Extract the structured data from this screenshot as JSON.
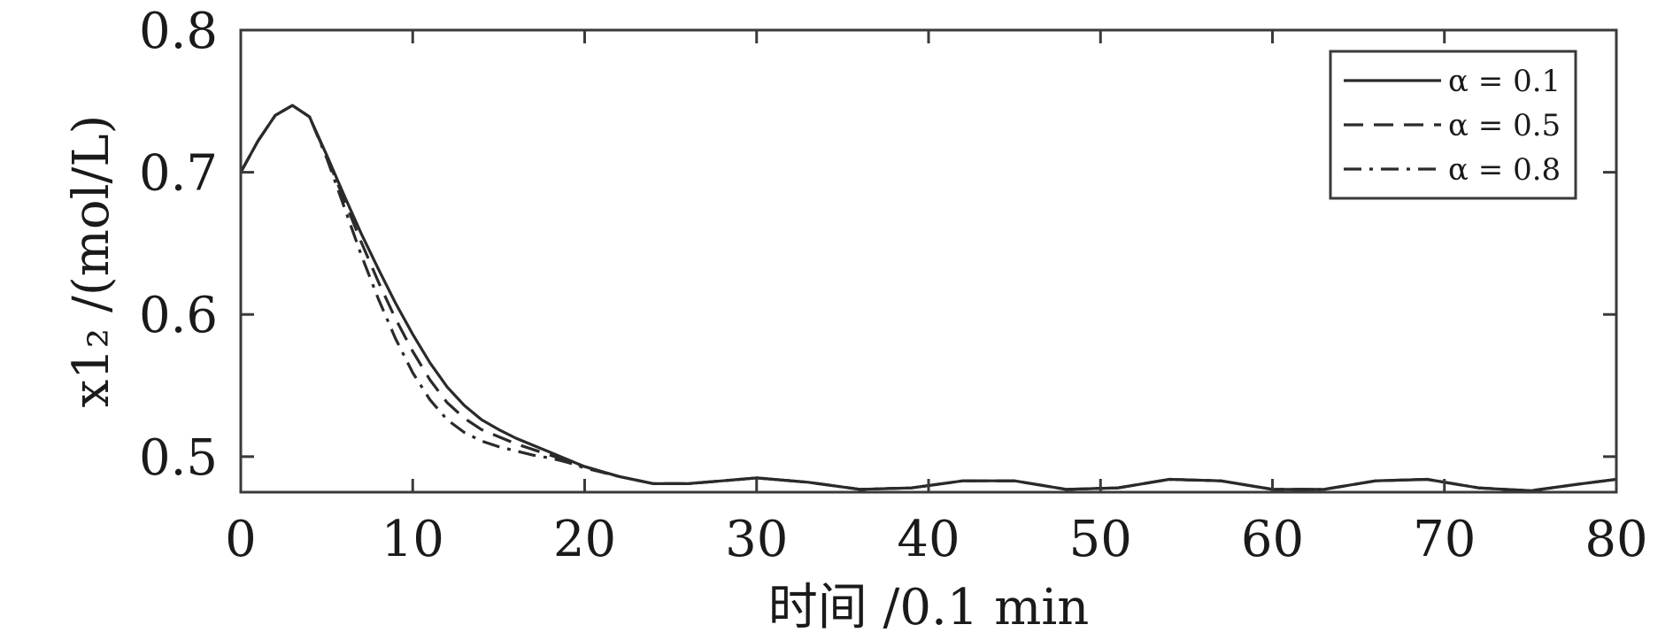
{
  "chart_data": {
    "type": "line",
    "xlabel": "时间 /0.1 min",
    "ylabel": "x1₂ /(mol/L)",
    "xlim": [
      0,
      80
    ],
    "ylim": [
      0.475,
      0.8
    ],
    "xticks": [
      0,
      10,
      20,
      30,
      40,
      50,
      60,
      70,
      80
    ],
    "xtick_labels": [
      "0",
      "10",
      "20",
      "30",
      "40",
      "50",
      "60",
      "70",
      "80"
    ],
    "yticks": [
      0.5,
      0.6,
      0.7,
      0.8
    ],
    "ytick_labels": [
      "0.5",
      "0.6",
      "0.7",
      "0.8"
    ],
    "grid": false,
    "legend_position": "top-right",
    "line_color": "#2a2a2a",
    "series": [
      {
        "name": "α = 0.1",
        "style": "solid",
        "x": [
          0,
          1,
          2,
          3,
          4,
          5,
          6,
          7,
          8,
          9,
          10,
          11,
          12,
          13,
          14,
          15,
          16,
          17,
          18,
          19,
          20,
          22,
          24,
          26,
          28,
          30,
          33,
          36,
          39,
          42,
          45,
          48,
          51,
          54,
          57,
          60,
          63,
          66,
          69,
          72,
          75,
          78,
          80
        ],
        "y": [
          0.7,
          0.722,
          0.74,
          0.747,
          0.739,
          0.712,
          0.684,
          0.657,
          0.632,
          0.608,
          0.586,
          0.566,
          0.549,
          0.536,
          0.526,
          0.519,
          0.513,
          0.508,
          0.503,
          0.498,
          0.493,
          0.486,
          0.481,
          0.481,
          0.483,
          0.485,
          0.482,
          0.477,
          0.478,
          0.483,
          0.483,
          0.477,
          0.478,
          0.484,
          0.483,
          0.477,
          0.477,
          0.483,
          0.484,
          0.478,
          0.476,
          0.481,
          0.484
        ]
      },
      {
        "name": "α = 0.5",
        "style": "dashed",
        "x": [
          0,
          1,
          2,
          3,
          4,
          5,
          6,
          7,
          8,
          9,
          10,
          11,
          12,
          13,
          14,
          15,
          16,
          17,
          18,
          19,
          20,
          22,
          24,
          26,
          28,
          30,
          33,
          36,
          39,
          42,
          45,
          48,
          51,
          54,
          57,
          60,
          63,
          66,
          69,
          72,
          75,
          78,
          80
        ],
        "y": [
          0.7,
          0.722,
          0.74,
          0.747,
          0.739,
          0.711,
          0.681,
          0.651,
          0.623,
          0.597,
          0.574,
          0.554,
          0.538,
          0.527,
          0.519,
          0.514,
          0.509,
          0.505,
          0.501,
          0.497,
          0.493,
          0.486,
          0.481,
          0.481,
          0.483,
          0.485,
          0.482,
          0.477,
          0.478,
          0.483,
          0.483,
          0.477,
          0.478,
          0.484,
          0.483,
          0.477,
          0.477,
          0.483,
          0.484,
          0.478,
          0.476,
          0.481,
          0.484
        ]
      },
      {
        "name": "α = 0.8",
        "style": "dashdot",
        "x": [
          0,
          1,
          2,
          3,
          4,
          5,
          6,
          7,
          8,
          9,
          10,
          11,
          12,
          13,
          14,
          15,
          16,
          17,
          18,
          19,
          20,
          22,
          24,
          26,
          28,
          30,
          33,
          36,
          39,
          42,
          45,
          48,
          51,
          54,
          57,
          60,
          63,
          66,
          69,
          72,
          75,
          78,
          80
        ],
        "y": [
          0.7,
          0.722,
          0.74,
          0.747,
          0.739,
          0.71,
          0.676,
          0.642,
          0.611,
          0.583,
          0.559,
          0.54,
          0.526,
          0.517,
          0.511,
          0.507,
          0.504,
          0.501,
          0.499,
          0.496,
          0.492,
          0.486,
          0.481,
          0.481,
          0.483,
          0.485,
          0.482,
          0.477,
          0.478,
          0.483,
          0.483,
          0.477,
          0.478,
          0.484,
          0.483,
          0.477,
          0.477,
          0.483,
          0.484,
          0.478,
          0.476,
          0.481,
          0.484
        ]
      }
    ]
  }
}
